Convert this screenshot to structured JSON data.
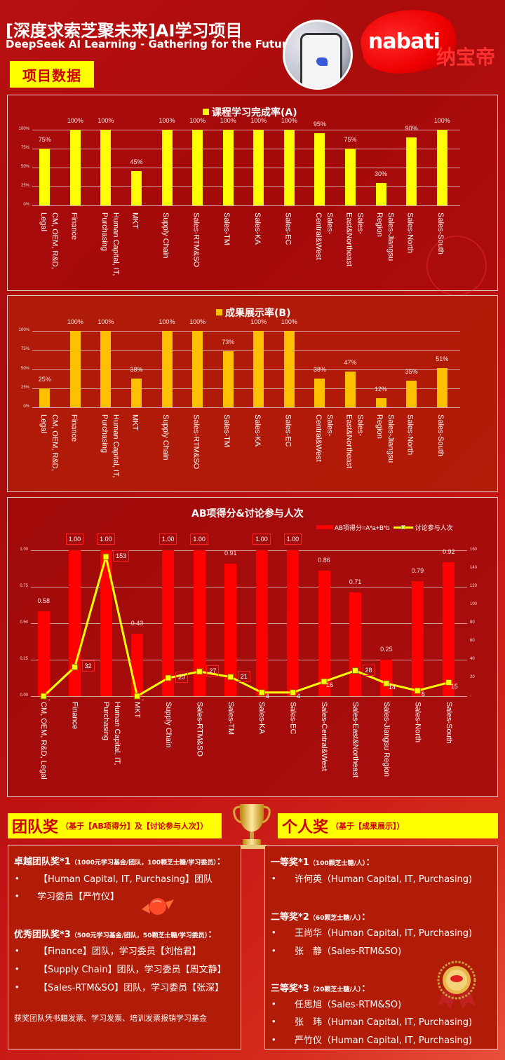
{
  "header": {
    "title_cn": "[深度求索芝聚未来]AI学习项目",
    "title_en": "DeepSeek AI Learning - Gathering for the Future",
    "section_badge": "项目数据",
    "brand_logo": "nabati",
    "brand_cn": "纳宝帝",
    "phone_image_icon": "deepseek-phone-image"
  },
  "colors": {
    "background": "#b81010",
    "chart_a_bar": "#ffff00",
    "chart_b_bar": "#ffc000",
    "chart_ab_bar": "#ff0000",
    "line": "#ffff00",
    "badge_bg": "#ffff00",
    "badge_text": "#cc0000"
  },
  "chart_data": [
    {
      "type": "bar",
      "title": "课程学习完成率(A)",
      "legend": [
        "课程学习完成率(A)"
      ],
      "categories": [
        "CM, OEM, R&D, Legal",
        "Finance",
        "Human Capital, IT, Purchasing",
        "MKT",
        "Supply Chain",
        "Sales-RTM&SO",
        "Sales-TM",
        "Sales-KA",
        "Sales-EC",
        "Sales-Central&West",
        "Sales-East&Northeast",
        "Sales-Jiangsu Region",
        "Sales-North",
        "Sales-South"
      ],
      "values": [
        75,
        100,
        100,
        45,
        100,
        100,
        100,
        100,
        100,
        95,
        75,
        30,
        90,
        100
      ],
      "value_labels": [
        "75%",
        "100%",
        "100%",
        "45%",
        "100%",
        "100%",
        "100%",
        "100%",
        "100%",
        "95%",
        "75%",
        "30%",
        "90%",
        "100%"
      ],
      "yticks": [
        "0%",
        "25%",
        "50%",
        "75%",
        "100%"
      ],
      "ylim": [
        0,
        100
      ],
      "grid": true
    },
    {
      "type": "bar",
      "title": "成果展示率(B)",
      "legend": [
        "成果展示率(B)"
      ],
      "categories": [
        "CM, OEM, R&D, Legal",
        "Finance",
        "Human Capital, IT, Purchasing",
        "MKT",
        "Supply Chain",
        "Sales-RTM&SO",
        "Sales-TM",
        "Sales-KA",
        "Sales-EC",
        "Sales-Central&West",
        "Sales-East&Northeast",
        "Sales-Jiangsu Region",
        "Sales-North",
        "Sales-South"
      ],
      "values": [
        25,
        100,
        100,
        38,
        100,
        100,
        73,
        100,
        100,
        38,
        47,
        12,
        35,
        51
      ],
      "value_labels": [
        "25%",
        "100%",
        "100%",
        "38%",
        "100%",
        "100%",
        "73%",
        "100%",
        "100%",
        "38%",
        "47%",
        "12%",
        "35%",
        "51%"
      ],
      "yticks": [
        "0%",
        "25%",
        "50%",
        "75%",
        "100%"
      ],
      "ylim": [
        0,
        100
      ],
      "grid": true
    },
    {
      "type": "bar+line",
      "title": "AB项得分&讨论参与人次",
      "legend": [
        "AB项得分=A*a+B*b",
        "讨论参与人次"
      ],
      "categories": [
        "CM, OEM, R&D, Legal",
        "Finance",
        "Human Capital, IT, Purchasing",
        "MKT",
        "Supply Chain",
        "Sales-RTM&SO",
        "Sales-TM",
        "Sales-KA",
        "Sales-EC",
        "Sales-Central&West",
        "Sales-East&Northeast",
        "Sales-Jiangsu Region",
        "Sales-North",
        "Sales-South"
      ],
      "series": [
        {
          "name": "AB项得分=A*a+B*b",
          "type": "bar",
          "axis": "left",
          "values": [
            0.58,
            1.0,
            1.0,
            0.43,
            1.0,
            1.0,
            0.91,
            1.0,
            1.0,
            0.86,
            0.71,
            0.25,
            0.79,
            0.92
          ],
          "labels": [
            "0.58",
            "1.00",
            "1.00",
            "0.43",
            "1.00",
            "1.00",
            "0.91",
            "1.00",
            "1.00",
            "0.86",
            "0.71",
            "0.25",
            "0.79",
            "0.92"
          ],
          "boxed": [
            false,
            true,
            true,
            false,
            true,
            true,
            false,
            true,
            true,
            false,
            false,
            false,
            false,
            false
          ]
        },
        {
          "name": "讨论参与人次",
          "type": "line",
          "axis": "right",
          "values": [
            0,
            32,
            153,
            0,
            20,
            27,
            21,
            4,
            4,
            16,
            28,
            14,
            6,
            15
          ],
          "labels": [
            "-",
            "32",
            "153",
            "-",
            "20",
            "27",
            "21",
            "4",
            "4",
            "16",
            "28",
            "14",
            "6",
            "15"
          ],
          "boxed": [
            false,
            true,
            true,
            false,
            true,
            true,
            true,
            false,
            false,
            false,
            true,
            false,
            false,
            false
          ]
        }
      ],
      "yticks_left": [
        "0.00",
        "0.25",
        "0.50",
        "0.75",
        "1.00"
      ],
      "yticks_right": [
        "-",
        "20",
        "40",
        "60",
        "80",
        "100",
        "120",
        "140",
        "160"
      ],
      "ylim_left": [
        0,
        1
      ],
      "ylim_right": [
        0,
        160
      ],
      "grid": true
    }
  ],
  "team_award": {
    "title": "团队奖",
    "subtitle": "（基于【AB项得分】及【讨论参与人次】）",
    "excellent": {
      "label": "卓越团队奖*1",
      "note": "（1000元学习基金/团队，100颗芝士糖/学习委员）",
      "colon": "：",
      "items": [
        "【Human Capital, IT, Purchasing】团队",
        "学习委员【严竹仪】"
      ]
    },
    "outstanding": {
      "label": "优秀团队奖*3",
      "note": "（500元学习基金/团队，50颗芝士糖/学习委员）",
      "colon": "：",
      "items": [
        "【Finance】团队，学习委员【刘怡君】",
        "【Supply Chain】团队，学习委员【周文静】",
        "【Sales-RTM&SO】团队，学习委员【张深】"
      ]
    },
    "footnote": "获奖团队凭书籍发票、学习发票、培训发票报销学习基金"
  },
  "individual_award": {
    "title": "个人奖",
    "subtitle": "（基于【成果展示】）",
    "first": {
      "label": "一等奖*1",
      "note": "（100颗芝士糖/人）",
      "colon": "：",
      "items": [
        "许何英（Human Capital, IT, Purchasing)"
      ]
    },
    "second": {
      "label": "二等奖*2",
      "note": "（60颗芝士糖/人）",
      "colon": "：",
      "items": [
        "王尚华（Human Capital, IT, Purchasing)",
        "张　静（Sales-RTM&SO)"
      ]
    },
    "third": {
      "label": "三等奖*3",
      "note": "（20颗芝士糖/人）",
      "colon": "：",
      "items": [
        "任思旭（Sales-RTM&SO)",
        "张　玮（Human Capital, IT, Purchasing)",
        "严竹仪（Human Capital, IT, Purchasing)"
      ]
    }
  },
  "bullet": "•"
}
